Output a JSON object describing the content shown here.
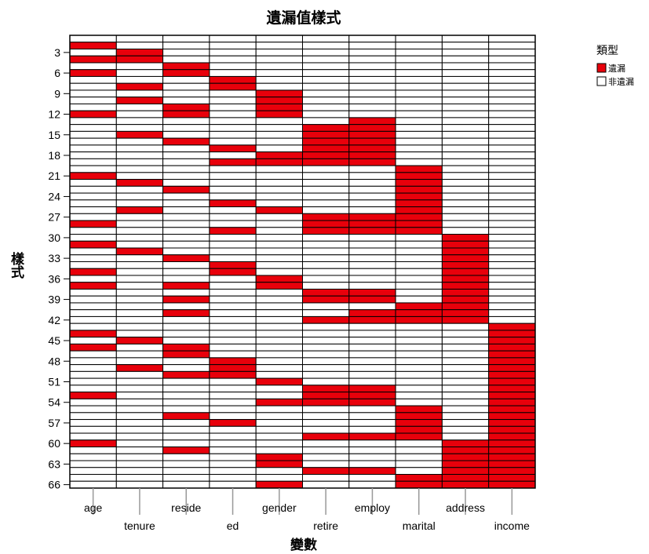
{
  "chart_data": {
    "type": "heatmap",
    "title": "遺漏值樣式",
    "xlabel": "變數",
    "ylabel": "樣式",
    "variables": [
      "age",
      "tenure",
      "reside",
      "ed",
      "gender",
      "retire",
      "employ",
      "marital",
      "address",
      "income"
    ],
    "pattern_count": 66,
    "y_ticks": [
      3,
      6,
      9,
      12,
      15,
      18,
      21,
      24,
      27,
      30,
      33,
      36,
      39,
      42,
      45,
      48,
      51,
      54,
      57,
      60,
      63,
      66
    ],
    "legend": {
      "title": "類型",
      "items": [
        {
          "label": "遺漏",
          "color": "#e8000b"
        },
        {
          "label": "非遺漏",
          "color": "#ffffff"
        }
      ]
    },
    "missing_color": "#e8000b",
    "present_color": "#ffffff",
    "missing_patterns": {
      "age": [
        2,
        4,
        6,
        12,
        21,
        28,
        31,
        35,
        37,
        44,
        46,
        53,
        60
      ],
      "tenure": [
        3,
        4,
        8,
        10,
        15,
        22,
        26,
        32,
        45,
        49
      ],
      "reside": [
        5,
        6,
        11,
        12,
        16,
        23,
        33,
        37,
        39,
        41,
        46,
        47,
        50,
        56,
        61
      ],
      "ed": [
        7,
        8,
        17,
        19,
        25,
        29,
        34,
        35,
        48,
        49,
        50,
        57
      ],
      "gender": [
        9,
        10,
        11,
        12,
        18,
        19,
        26,
        36,
        37,
        51,
        54,
        62,
        63,
        66
      ],
      "retire": [
        14,
        15,
        16,
        17,
        18,
        19,
        27,
        28,
        29,
        38,
        39,
        42,
        52,
        53,
        54,
        59,
        64
      ],
      "employ": [
        13,
        14,
        15,
        16,
        17,
        18,
        19,
        27,
        28,
        29,
        38,
        39,
        41,
        42,
        52,
        53,
        54,
        59,
        64
      ],
      "marital": [
        20,
        21,
        22,
        23,
        24,
        25,
        26,
        27,
        28,
        29,
        40,
        41,
        42,
        55,
        56,
        57,
        58,
        59,
        65,
        66
      ],
      "address": [
        30,
        31,
        32,
        33,
        34,
        35,
        36,
        37,
        38,
        39,
        40,
        41,
        42,
        60,
        61,
        62,
        63,
        64,
        65,
        66
      ],
      "income": [
        43,
        44,
        45,
        46,
        47,
        48,
        49,
        50,
        51,
        52,
        53,
        54,
        55,
        56,
        57,
        58,
        59,
        60,
        61,
        62,
        63,
        64,
        65,
        66
      ]
    }
  }
}
